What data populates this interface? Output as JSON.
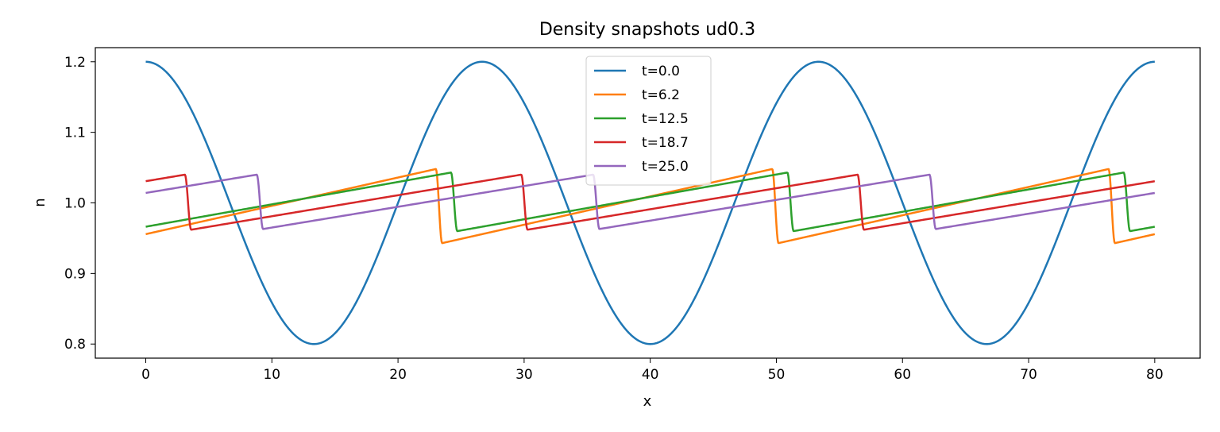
{
  "chart_data": {
    "type": "line",
    "title": "Density snapshots  ud0.3",
    "xlabel": "x",
    "ylabel": "n",
    "xlim": [
      -4,
      83.6
    ],
    "ylim": [
      0.78,
      1.22
    ],
    "xticks": [
      0,
      10,
      20,
      30,
      40,
      50,
      60,
      70,
      80
    ],
    "yticks": [
      0.8,
      0.9,
      1.0,
      1.1,
      1.2
    ],
    "xtick_labels": [
      "0",
      "10",
      "20",
      "30",
      "40",
      "50",
      "60",
      "70",
      "80"
    ],
    "ytick_labels": [
      "0.8",
      "0.9",
      "1.0",
      "1.1",
      "1.2"
    ],
    "grid": false,
    "legend_position": "top-center",
    "domain_length": 80,
    "series": [
      {
        "name": "t=0.0",
        "color": "#1f77b4",
        "kind": "cosine",
        "period": 26.67,
        "center": 1.0,
        "amplitude": 0.2
      },
      {
        "name": "t=6.2",
        "color": "#ff7f0e",
        "kind": "sawtooth",
        "period": 26.67,
        "shock_x": 23.0,
        "low": 0.943,
        "high": 1.048
      },
      {
        "name": "t=12.5",
        "color": "#2ca02c",
        "kind": "sawtooth",
        "period": 26.67,
        "shock_x": 24.2,
        "low": 0.96,
        "high": 1.043
      },
      {
        "name": "t=18.7",
        "color": "#d62728",
        "kind": "sawtooth",
        "period": 26.67,
        "shock_x": 3.1,
        "low": 0.962,
        "high": 1.04
      },
      {
        "name": "t=25.0",
        "color": "#9467bd",
        "kind": "sawtooth",
        "period": 26.67,
        "shock_x": 8.8,
        "low": 0.963,
        "high": 1.04
      }
    ]
  }
}
